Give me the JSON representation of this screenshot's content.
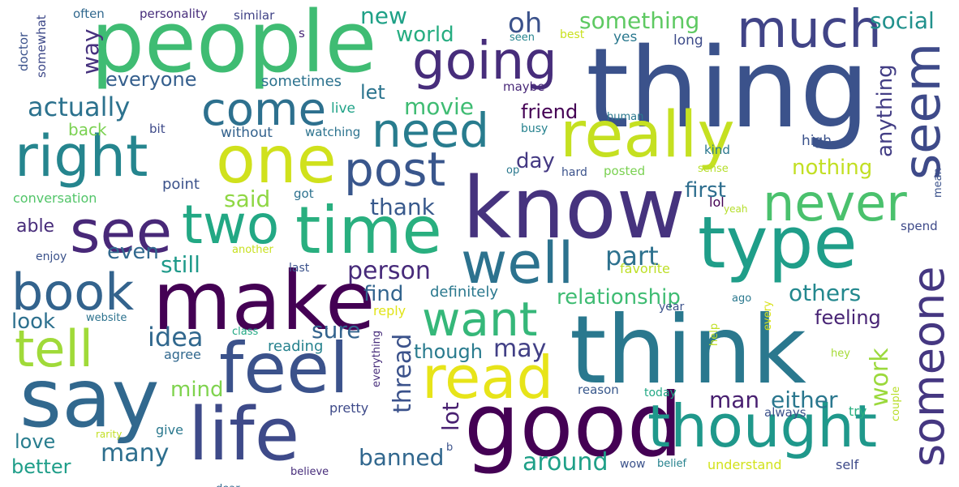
{
  "words": [
    {
      "text": "thing",
      "color": "#3b528b"
    },
    {
      "text": "people",
      "color": "#3fbc73"
    },
    {
      "text": "know",
      "color": "#46337e"
    },
    {
      "text": "think",
      "color": "#2a788e"
    },
    {
      "text": "good",
      "color": "#440154"
    },
    {
      "text": "say",
      "color": "#31688e"
    },
    {
      "text": "type",
      "color": "#1f9e89"
    },
    {
      "text": "make",
      "color": "#440154"
    },
    {
      "text": "really",
      "color": "#c5e021"
    },
    {
      "text": "time",
      "color": "#29af7f"
    },
    {
      "text": "feel",
      "color": "#3b528b"
    },
    {
      "text": "life",
      "color": "#3e4a89"
    },
    {
      "text": "thought",
      "color": "#1f988b"
    },
    {
      "text": "read",
      "color": "#e7e419"
    },
    {
      "text": "one",
      "color": "#d0e11c"
    },
    {
      "text": "right",
      "color": "#25858e"
    },
    {
      "text": "much",
      "color": "#414487"
    },
    {
      "text": "seem",
      "color": "#3e4a89"
    },
    {
      "text": "going",
      "color": "#472d7b"
    },
    {
      "text": "well",
      "color": "#2c728e"
    },
    {
      "text": "two",
      "color": "#22a884"
    },
    {
      "text": "see",
      "color": "#482878"
    },
    {
      "text": "need",
      "color": "#287c8e"
    },
    {
      "text": "post",
      "color": "#39568c"
    },
    {
      "text": "come",
      "color": "#2d708e"
    },
    {
      "text": "never",
      "color": "#4ac16d"
    },
    {
      "text": "want",
      "color": "#35b779"
    },
    {
      "text": "tell",
      "color": "#a0da39"
    },
    {
      "text": "book",
      "color": "#33638d"
    },
    {
      "text": "someone",
      "color": "#453781"
    },
    {
      "text": "actually",
      "color": "#2c728e"
    },
    {
      "text": "something",
      "color": "#5ec962"
    },
    {
      "text": "new",
      "color": "#1fa187"
    },
    {
      "text": "oh",
      "color": "#3b528b"
    },
    {
      "text": "world",
      "color": "#26ad81"
    },
    {
      "text": "way",
      "color": "#46327e"
    },
    {
      "text": "everyone",
      "color": "#355f8d"
    },
    {
      "text": "sometimes",
      "color": "#2c728e"
    },
    {
      "text": "let",
      "color": "#2b748e"
    },
    {
      "text": "movie",
      "color": "#3fbc73"
    },
    {
      "text": "friend",
      "color": "#440154"
    },
    {
      "text": "back",
      "color": "#7ad151"
    },
    {
      "text": "anything",
      "color": "#433e85"
    },
    {
      "text": "social",
      "color": "#21918c"
    },
    {
      "text": "said",
      "color": "#8fd744"
    },
    {
      "text": "thank",
      "color": "#38598c"
    },
    {
      "text": "first",
      "color": "#2e6e8e"
    },
    {
      "text": "nothing",
      "color": "#c2df23"
    },
    {
      "text": "day",
      "color": "#443983"
    },
    {
      "text": "point",
      "color": "#3b528b"
    },
    {
      "text": "conversation",
      "color": "#52c569"
    },
    {
      "text": "able",
      "color": "#472c7a"
    },
    {
      "text": "even",
      "color": "#31688e"
    },
    {
      "text": "still",
      "color": "#1f9a8a"
    },
    {
      "text": "person",
      "color": "#472a7a"
    },
    {
      "text": "part",
      "color": "#2d718e"
    },
    {
      "text": "find",
      "color": "#32648e"
    },
    {
      "text": "others",
      "color": "#23888e"
    },
    {
      "text": "relationship",
      "color": "#3fbc73"
    },
    {
      "text": "feeling",
      "color": "#482475"
    },
    {
      "text": "definitely",
      "color": "#2a788e"
    },
    {
      "text": "idea",
      "color": "#31688e"
    },
    {
      "text": "sure",
      "color": "#33638d"
    },
    {
      "text": "look",
      "color": "#2d708e"
    },
    {
      "text": "may",
      "color": "#424086"
    },
    {
      "text": "though",
      "color": "#297b8e"
    },
    {
      "text": "reading",
      "color": "#26828e"
    },
    {
      "text": "agree",
      "color": "#31688e"
    },
    {
      "text": "mind",
      "color": "#7fd34e"
    },
    {
      "text": "thread",
      "color": "#3b528b"
    },
    {
      "text": "lot",
      "color": "#482071"
    },
    {
      "text": "work",
      "color": "#9bd93c"
    },
    {
      "text": "man",
      "color": "#481f70"
    },
    {
      "text": "either",
      "color": "#2a778e"
    },
    {
      "text": "love",
      "color": "#287d8e"
    },
    {
      "text": "many",
      "color": "#2e6f8e"
    },
    {
      "text": "banned",
      "color": "#31678e"
    },
    {
      "text": "around",
      "color": "#1fa088"
    },
    {
      "text": "better",
      "color": "#1f9e89"
    },
    {
      "text": "often",
      "color": "#31688e"
    },
    {
      "text": "personality",
      "color": "#472d7b"
    },
    {
      "text": "similar",
      "color": "#414487"
    },
    {
      "text": "doctor",
      "color": "#3b528b"
    },
    {
      "text": "somewhat",
      "color": "#3e4989"
    },
    {
      "text": "s",
      "color": "#482878"
    },
    {
      "text": "seen",
      "color": "#25848e"
    },
    {
      "text": "best",
      "color": "#cae11f"
    },
    {
      "text": "yes",
      "color": "#2a788e"
    },
    {
      "text": "long",
      "color": "#3e4c8a"
    },
    {
      "text": "maybe",
      "color": "#482878"
    },
    {
      "text": "live",
      "color": "#1fa287"
    },
    {
      "text": "human",
      "color": "#2a788e"
    },
    {
      "text": "busy",
      "color": "#26828e"
    },
    {
      "text": "bit",
      "color": "#3e4a89"
    },
    {
      "text": "without",
      "color": "#33628d"
    },
    {
      "text": "watching",
      "color": "#2c738e"
    },
    {
      "text": "kind",
      "color": "#2a768e"
    },
    {
      "text": "high",
      "color": "#3b528b"
    },
    {
      "text": "op",
      "color": "#2a788e"
    },
    {
      "text": "hard",
      "color": "#3b528b"
    },
    {
      "text": "posted",
      "color": "#7ad151"
    },
    {
      "text": "sense",
      "color": "#b5de2b"
    },
    {
      "text": "mean",
      "color": "#3b528b"
    },
    {
      "text": "got",
      "color": "#2c718e"
    },
    {
      "text": "lol",
      "color": "#440154"
    },
    {
      "text": "yeah",
      "color": "#b5de2b"
    },
    {
      "text": "spend",
      "color": "#3e4a89"
    },
    {
      "text": "another",
      "color": "#c8e020"
    },
    {
      "text": "enjoy",
      "color": "#3b528b"
    },
    {
      "text": "last",
      "color": "#3b528b"
    },
    {
      "text": "favorite",
      "color": "#bddf26"
    },
    {
      "text": "reply",
      "color": "#e1e418"
    },
    {
      "text": "website",
      "color": "#2c728e"
    },
    {
      "text": "class",
      "color": "#22a884"
    },
    {
      "text": "everything",
      "color": "#472d7b"
    },
    {
      "text": "help",
      "color": "#c0df25"
    },
    {
      "text": "year",
      "color": "#3b528b"
    },
    {
      "text": "ago",
      "color": "#2a788e"
    },
    {
      "text": "every",
      "color": "#d8e219"
    },
    {
      "text": "hey",
      "color": "#a5db36"
    },
    {
      "text": "reason",
      "color": "#38588c"
    },
    {
      "text": "today",
      "color": "#22a884"
    },
    {
      "text": "always",
      "color": "#3b528b"
    },
    {
      "text": "try",
      "color": "#29af7f"
    },
    {
      "text": "couple",
      "color": "#b8de29"
    },
    {
      "text": "pretty",
      "color": "#3e4a89"
    },
    {
      "text": "give",
      "color": "#2a788e"
    },
    {
      "text": "rarity",
      "color": "#c2df23"
    },
    {
      "text": "b",
      "color": "#3b528b"
    },
    {
      "text": "dear",
      "color": "#31688e"
    },
    {
      "text": "believe",
      "color": "#472d7b"
    },
    {
      "text": "wow",
      "color": "#3b528b"
    },
    {
      "text": "belief",
      "color": "#26828e"
    },
    {
      "text": "understand",
      "color": "#d2e21b"
    },
    {
      "text": "self",
      "color": "#3e4a89"
    }
  ]
}
